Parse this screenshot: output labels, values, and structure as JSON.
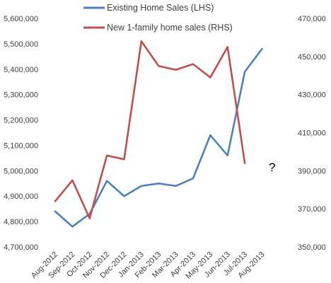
{
  "chart_data": {
    "type": "line",
    "title": "",
    "categories": [
      "Aug-2012",
      "Sep-2012",
      "Oct-2012",
      "Nov-2012",
      "Dec-2012",
      "Jan-2013",
      "Feb-2013",
      "Mar-2013",
      "Apr-2013",
      "May-2013",
      "Jun-2013",
      "Jul-2013",
      "Aug-2013"
    ],
    "series": [
      {
        "name": "Existing Home Sales (LHS)",
        "axis": "left",
        "color": "#4f81bd",
        "values": [
          4840000,
          4780000,
          4830000,
          4960000,
          4900000,
          4940000,
          4950000,
          4940000,
          4970000,
          5140000,
          5060000,
          5390000,
          5480000
        ]
      },
      {
        "name": "New 1-family home sales (RHS)",
        "axis": "right",
        "color": "#c0504d",
        "values": [
          374000,
          385000,
          365000,
          398000,
          396000,
          458000,
          445000,
          443000,
          446000,
          439000,
          455000,
          394000,
          null
        ]
      }
    ],
    "left_axis": {
      "ylim": [
        4700000,
        5600000
      ],
      "ticks": [
        "4,700,000",
        "4,800,000",
        "4,900,000",
        "5,000,000",
        "5,100,000",
        "5,200,000",
        "5,300,000",
        "5,400,000",
        "5,500,000",
        "5,600,000"
      ]
    },
    "right_axis": {
      "ylim": [
        350000,
        470000
      ],
      "ticks": [
        "350,000",
        "370,000",
        "390,000",
        "410,000",
        "430,000",
        "450,000",
        "470,000"
      ]
    },
    "annotations": [
      {
        "text": "?",
        "x": "Jul-2013"
      }
    ],
    "legend_placement": "top-center",
    "grid": false
  }
}
